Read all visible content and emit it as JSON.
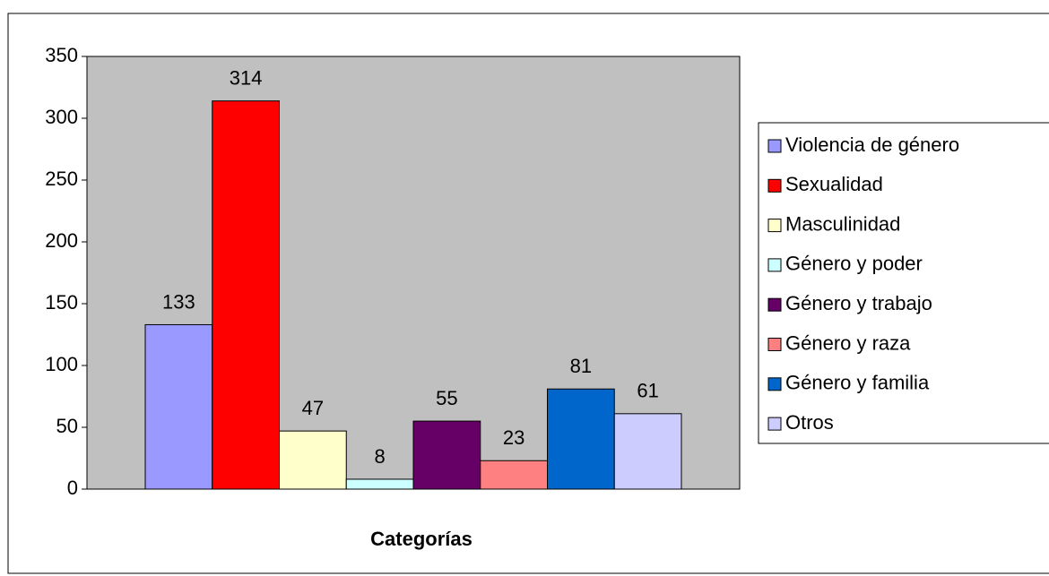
{
  "chart_data": {
    "type": "bar",
    "x_label": "Categorías",
    "categories": [
      null
    ],
    "series": [
      {
        "name": "Violencia de género",
        "color": "#9999ff",
        "values": [
          133
        ]
      },
      {
        "name": "Sexualidad",
        "color": "#ff0000",
        "values": [
          314
        ]
      },
      {
        "name": "Masculinidad",
        "color": "#ffffcc",
        "values": [
          47
        ]
      },
      {
        "name": "Género y poder",
        "color": "#ccffff",
        "values": [
          8
        ]
      },
      {
        "name": "Género y trabajo",
        "color": "#660066",
        "values": [
          55
        ]
      },
      {
        "name": "Género y raza",
        "color": "#ff8080",
        "values": [
          23
        ]
      },
      {
        "name": "Género y familia",
        "color": "#0066cc",
        "values": [
          81
        ]
      },
      {
        "name": "Otros",
        "color": "#ccccff",
        "values": [
          61
        ]
      }
    ],
    "ylim": [
      0,
      350
    ],
    "yticks": [
      0,
      50,
      100,
      150,
      200,
      250,
      300,
      350
    ],
    "grid": false,
    "plot_background": "#c0c0c0",
    "legend": "right"
  }
}
